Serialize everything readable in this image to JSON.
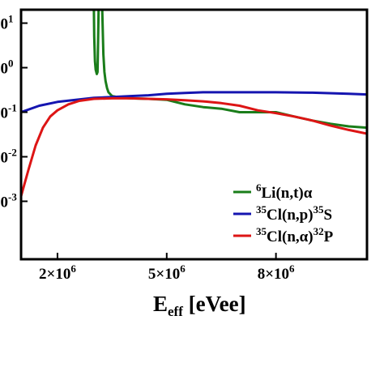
{
  "chart_data": {
    "type": "line",
    "title": "",
    "xlabel": {
      "main": "E",
      "sub": "eff",
      "rest": " [eVee]"
    },
    "ylabel": "",
    "x_scale": "linear",
    "y_scale": "log",
    "xlim": [
      1000000,
      10500000
    ],
    "ylim": [
      5e-05,
      20
    ],
    "grid": false,
    "legend_position": "bottom-right",
    "x_ticks": [
      {
        "value": 2000000,
        "base": "2",
        "times": "×",
        "pow_base": "10",
        "exp": "6"
      },
      {
        "value": 5000000,
        "base": "5",
        "times": "×",
        "pow_base": "10",
        "exp": "6"
      },
      {
        "value": 8000000,
        "base": "8",
        "times": "×",
        "pow_base": "10",
        "exp": "6"
      }
    ],
    "y_ticks": [
      {
        "value": 10,
        "sup": "1"
      },
      {
        "value": 1,
        "sup": "0"
      },
      {
        "value": 0.1,
        "sup": "-1"
      },
      {
        "value": 0.01,
        "sup": "-2"
      },
      {
        "value": 0.001,
        "sup": "-3"
      }
    ],
    "series": [
      {
        "name": "Li(n,t)α",
        "legend_parts": {
          "pre": "",
          "sup1": "6",
          "mid": "Li(n,t)α",
          "sup2": "",
          "end": ""
        },
        "color": "#1a7d1a",
        "x": [
          3000000,
          3010000,
          3030000,
          3050000,
          3080000,
          3100000,
          3110000,
          3130000,
          3160000,
          3190000,
          3230000,
          3260000,
          3290000,
          3320000,
          3360000,
          3400000,
          3500000,
          3700000,
          4000000,
          4500000,
          5000000,
          5500000,
          6000000,
          6500000,
          7000000,
          7500000,
          8000000,
          8500000,
          9000000,
          9500000,
          10000000,
          10500000
        ],
        "y": [
          20,
          5,
          1.4,
          0.9,
          0.72,
          0.8,
          2.0,
          20,
          20,
          20,
          20,
          2.0,
          0.8,
          0.5,
          0.35,
          0.28,
          0.23,
          0.215,
          0.205,
          0.2,
          0.19,
          0.15,
          0.13,
          0.12,
          0.1,
          0.1,
          0.1,
          0.08,
          0.065,
          0.055,
          0.048,
          0.045
        ]
      },
      {
        "name": "Cl(n,p)S",
        "legend_parts": {
          "pre": "",
          "sup1": "35",
          "mid": "Cl(n,p)",
          "sup2": "35",
          "end": "S"
        },
        "color": "#1515b0",
        "x": [
          1000000,
          1500000,
          2000000,
          2500000,
          3000000,
          3500000,
          4000000,
          4500000,
          5000000,
          5500000,
          6000000,
          7000000,
          8000000,
          9000000,
          10000000,
          10500000
        ],
        "y": [
          0.1,
          0.14,
          0.17,
          0.19,
          0.21,
          0.22,
          0.23,
          0.24,
          0.26,
          0.27,
          0.28,
          0.28,
          0.28,
          0.275,
          0.26,
          0.25
        ]
      },
      {
        "name": "Cl(n,α)P",
        "legend_parts": {
          "pre": "",
          "sup1": "35",
          "mid": "Cl(n,α)",
          "sup2": "32",
          "end": "P"
        },
        "color": "#dd1515",
        "x": [
          1000000,
          1200000,
          1400000,
          1600000,
          1800000,
          2000000,
          2300000,
          2600000,
          3000000,
          3500000,
          4000000,
          4500000,
          5000000,
          5500000,
          6000000,
          6500000,
          7000000,
          7500000,
          8000000,
          8500000,
          9000000,
          9500000,
          10000000,
          10500000
        ],
        "y": [
          0.0013,
          0.005,
          0.018,
          0.045,
          0.08,
          0.11,
          0.15,
          0.18,
          0.2,
          0.205,
          0.205,
          0.2,
          0.195,
          0.185,
          0.175,
          0.16,
          0.14,
          0.11,
          0.095,
          0.08,
          0.065,
          0.05,
          0.04,
          0.033
        ]
      }
    ]
  }
}
